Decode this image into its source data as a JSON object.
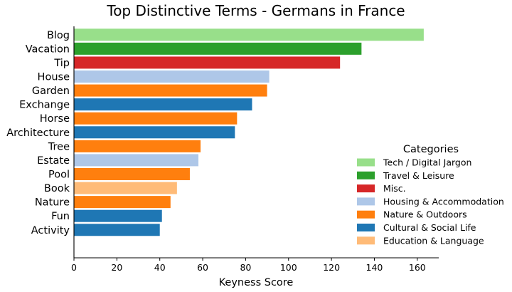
{
  "chart_data": {
    "type": "bar",
    "orientation": "horizontal",
    "title": "Top Distinctive Terms - Germans in France",
    "xlabel": "Keyness Score",
    "ylabel": "",
    "xlim": [
      0,
      170
    ],
    "xticks": [
      0,
      20,
      40,
      60,
      80,
      100,
      120,
      140,
      160
    ],
    "grid": false,
    "categories": [
      "Blog",
      "Vacation",
      "Tip",
      "House",
      "Garden",
      "Exchange",
      "Horse",
      "Architecture",
      "Tree",
      "Estate",
      "Pool",
      "Book",
      "Nature",
      "Fun",
      "Activity"
    ],
    "values": [
      163,
      134,
      124,
      91,
      90,
      83,
      76,
      75,
      59,
      58,
      54,
      48,
      45,
      41,
      40
    ],
    "bar_groups": [
      "Tech / Digital Jargon",
      "Travel & Leisure",
      "Misc.",
      "Housing & Accommodation",
      "Nature & Outdoors",
      "Cultural & Social Life",
      "Nature & Outdoors",
      "Cultural & Social Life",
      "Nature & Outdoors",
      "Housing & Accommodation",
      "Nature & Outdoors",
      "Education & Language",
      "Nature & Outdoors",
      "Cultural & Social Life",
      "Cultural & Social Life"
    ],
    "legend": {
      "title": "Categories",
      "placement": "right",
      "entries": [
        {
          "name": "Tech / Digital Jargon",
          "color": "#98df8a"
        },
        {
          "name": "Travel & Leisure",
          "color": "#2ca02c"
        },
        {
          "name": "Misc.",
          "color": "#d62728"
        },
        {
          "name": "Housing & Accommodation",
          "color": "#aec7e8"
        },
        {
          "name": "Nature & Outdoors",
          "color": "#ff7f0e"
        },
        {
          "name": "Cultural & Social Life",
          "color": "#1f77b4"
        },
        {
          "name": "Education & Language",
          "color": "#ffbb78"
        }
      ]
    }
  }
}
